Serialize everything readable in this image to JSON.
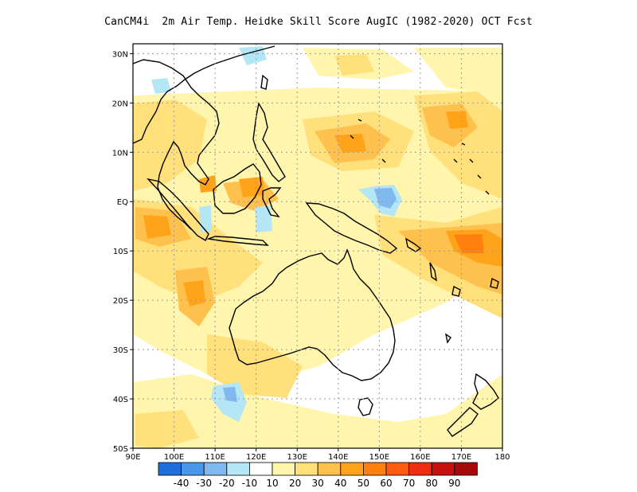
{
  "title": "CanCM4i  2m Air Temp. Heidke Skill Score AugIC (1982-2020) OCT Fcst",
  "map": {
    "lon_range": [
      90,
      180
    ],
    "lat_range": [
      -50,
      32
    ],
    "lat_ticks": [
      {
        "value": 30,
        "label": "30N"
      },
      {
        "value": 20,
        "label": "20N"
      },
      {
        "value": 10,
        "label": "10N"
      },
      {
        "value": 0,
        "label": "EQ"
      },
      {
        "value": -10,
        "label": "10S"
      },
      {
        "value": -20,
        "label": "20S"
      },
      {
        "value": -30,
        "label": "30S"
      },
      {
        "value": -40,
        "label": "40S"
      },
      {
        "value": -50,
        "label": "50S"
      }
    ],
    "lon_ticks": [
      {
        "value": 90,
        "label": "90E"
      },
      {
        "value": 100,
        "label": "100E"
      },
      {
        "value": 110,
        "label": "110E"
      },
      {
        "value": 120,
        "label": "120E"
      },
      {
        "value": 130,
        "label": "130E"
      },
      {
        "value": 140,
        "label": "140E"
      },
      {
        "value": 150,
        "label": "150E"
      },
      {
        "value": 160,
        "label": "160E"
      },
      {
        "value": 170,
        "label": "170E"
      },
      {
        "value": 180,
        "label": "180"
      }
    ],
    "grid": "dotted"
  },
  "colorbar": {
    "colors": [
      "#1e6fd9",
      "#4a96e8",
      "#7fb9f0",
      "#b4e6f5",
      "#ffffff",
      "#fff5ad",
      "#ffe07a",
      "#ffc14d",
      "#ffa41a",
      "#ff7f0f",
      "#ff5a12",
      "#ee2d12",
      "#c91010",
      "#a50a0a"
    ],
    "labels": [
      "-40",
      "-30",
      "-20",
      "-10",
      "10",
      "20",
      "30",
      "40",
      "50",
      "60",
      "70",
      "80",
      "90"
    ]
  }
}
